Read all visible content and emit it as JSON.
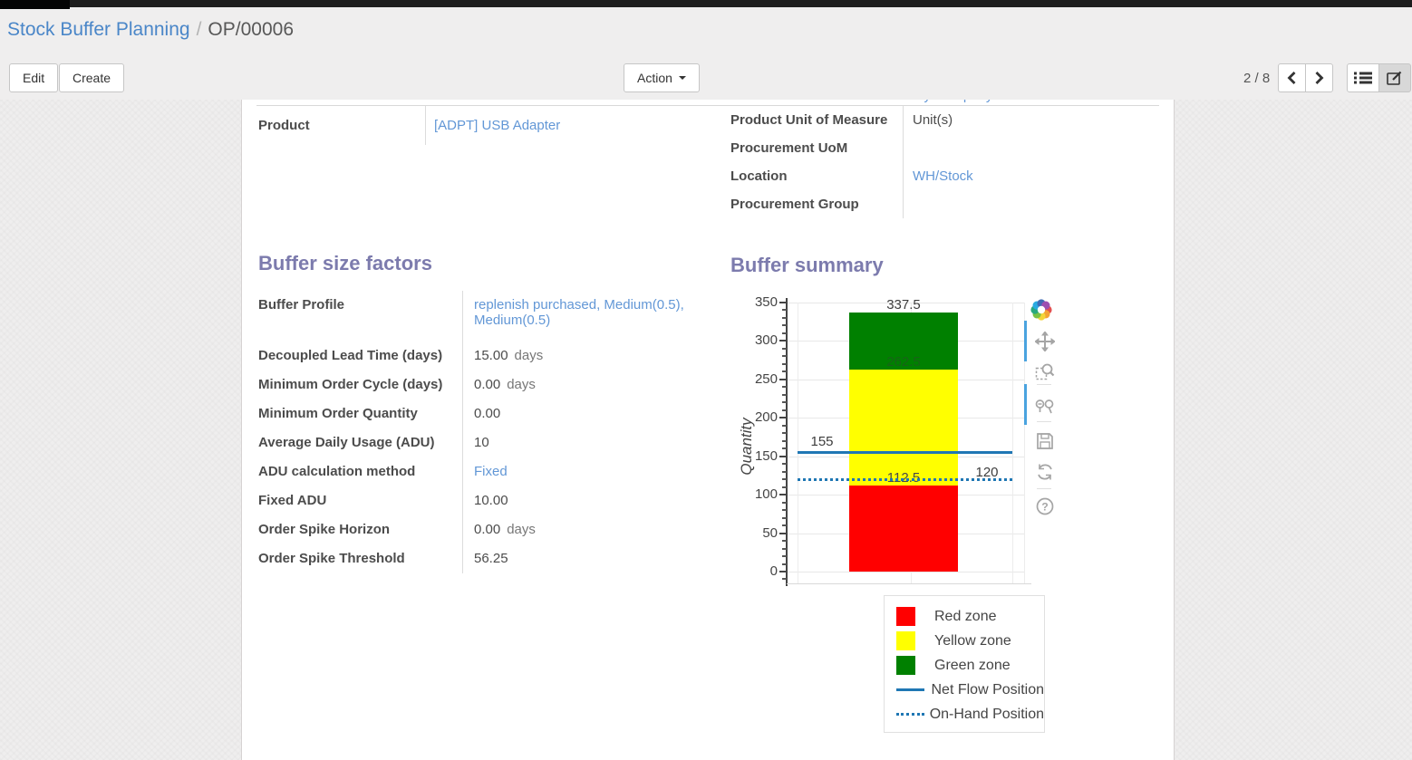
{
  "breadcrumb": {
    "parent": "Stock Buffer Planning",
    "separator": "/",
    "current": "OP/00006"
  },
  "toolbar": {
    "edit_label": "Edit",
    "create_label": "Create",
    "action_label": "Action",
    "pager": "2 / 8"
  },
  "view_switcher": {
    "icons": [
      "list-view-icon",
      "form-view-icon"
    ],
    "active": "form-view-icon"
  },
  "form": {
    "clipped_row_fragment": "My Company",
    "left_fields": [
      {
        "label": "Product",
        "value": "[ADPT] USB Adapter",
        "link": true
      }
    ],
    "right_fields": [
      {
        "label": "Product Unit of Measure",
        "value": "Unit(s)",
        "link": false
      },
      {
        "label": "Procurement UoM",
        "value": "",
        "link": false
      },
      {
        "label": "Location",
        "value": "WH/Stock",
        "link": true
      },
      {
        "label": "Procurement Group",
        "value": "",
        "link": false
      }
    ],
    "buffer_factors": {
      "title": "Buffer size factors",
      "rows": [
        {
          "label": "Buffer Profile",
          "value": "replenish purchased, Medium(0.5), Medium(0.5)",
          "link": true
        },
        {
          "label": "Decoupled Lead Time (days)",
          "value": "15.00",
          "suffix": "days"
        },
        {
          "label": "Minimum Order Cycle (days)",
          "value": "0.00",
          "suffix": "days"
        },
        {
          "label": "Minimum Order Quantity",
          "value": "0.00"
        },
        {
          "label": "Average Daily Usage (ADU)",
          "value": "10"
        },
        {
          "label": "ADU calculation method",
          "value": "Fixed",
          "link": true
        },
        {
          "label": "Fixed ADU",
          "value": "10.00"
        },
        {
          "label": "Order Spike Horizon",
          "value": "0.00",
          "suffix": "days"
        },
        {
          "label": "Order Spike Threshold",
          "value": "56.25"
        }
      ]
    },
    "buffer_summary_title": "Buffer summary"
  },
  "chart_data": {
    "type": "bar",
    "stacked": true,
    "categories": [
      ""
    ],
    "series": [
      {
        "name": "Red zone",
        "color": "#ff0000",
        "values": [
          112.5
        ]
      },
      {
        "name": "Yellow zone",
        "color": "#ffff00",
        "values": [
          150
        ]
      },
      {
        "name": "Green zone",
        "color": "#008000",
        "values": [
          75
        ]
      }
    ],
    "cumulative_tops": [
      112.5,
      262.5,
      337.5
    ],
    "boundary_labels": [
      "112.5",
      "262.5",
      "337.5"
    ],
    "lines": [
      {
        "name": "Net Flow Position",
        "value": 155,
        "label": "155",
        "style": "solid",
        "color": "#1f77b4",
        "label_side": "left"
      },
      {
        "name": "On-Hand Position",
        "value": 120,
        "label": "120",
        "style": "dotted",
        "color": "#1f77b4",
        "label_side": "right"
      }
    ],
    "ylabel": "Quantity",
    "ylim": [
      0,
      350
    ],
    "yticks": [
      0,
      50,
      100,
      150,
      200,
      250,
      300,
      350
    ],
    "minor_tick_step": 10,
    "grid": true,
    "legend": {
      "position": "below-right",
      "entries": [
        "Red zone",
        "Yellow zone",
        "Green zone",
        "Net Flow Position",
        "On-Hand Position"
      ]
    }
  },
  "modebar": {
    "icons": [
      "plotly-logo",
      "pan-icon",
      "box-zoom-icon",
      "zoom-in-out-icon",
      "save-icon",
      "reset-axes-icon",
      "help-icon"
    ]
  },
  "colors": {
    "heading_accent": "#7c7bad",
    "link": "#6297d6",
    "red_zone": "#ff0000",
    "yellow_zone": "#ffff00",
    "green_zone": "#008000",
    "position_line": "#1f77b4",
    "modebar_active": "#4aa3df"
  }
}
